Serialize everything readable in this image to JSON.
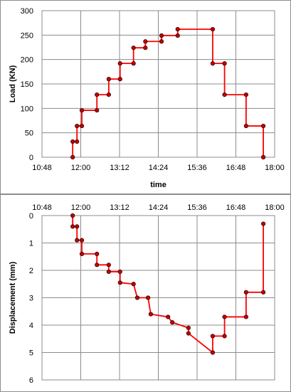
{
  "chart_data": [
    {
      "type": "line",
      "step": true,
      "title": "",
      "xlabel": "time",
      "ylabel": "Load (KN)",
      "xlim": [
        "10:48",
        "18:00"
      ],
      "ylim": [
        0,
        300
      ],
      "x_ticks": [
        "10:48",
        "12:00",
        "13:12",
        "14:24",
        "15:36",
        "16:48",
        "18:00"
      ],
      "y_ticks": [
        "0",
        "50",
        "100",
        "150",
        "200",
        "250",
        "300"
      ],
      "grid": true,
      "line_color": "#ff0000",
      "marker_color": "#c00000",
      "points": [
        {
          "x": "11:45",
          "y": 0
        },
        {
          "x": "11:45",
          "y": 32
        },
        {
          "x": "11:53",
          "y": 32
        },
        {
          "x": "11:53",
          "y": 64
        },
        {
          "x": "12:02",
          "y": 64
        },
        {
          "x": "12:02",
          "y": 96
        },
        {
          "x": "12:30",
          "y": 96
        },
        {
          "x": "12:30",
          "y": 128
        },
        {
          "x": "12:52",
          "y": 128
        },
        {
          "x": "12:52",
          "y": 160
        },
        {
          "x": "13:13",
          "y": 160
        },
        {
          "x": "13:13",
          "y": 192
        },
        {
          "x": "13:38",
          "y": 192
        },
        {
          "x": "13:38",
          "y": 224
        },
        {
          "x": "14:00",
          "y": 224
        },
        {
          "x": "14:00",
          "y": 237
        },
        {
          "x": "14:30",
          "y": 237
        },
        {
          "x": "14:30",
          "y": 249
        },
        {
          "x": "15:00",
          "y": 249
        },
        {
          "x": "15:00",
          "y": 262
        },
        {
          "x": "16:05",
          "y": 262
        },
        {
          "x": "16:05",
          "y": 192
        },
        {
          "x": "16:27",
          "y": 192
        },
        {
          "x": "16:27",
          "y": 128
        },
        {
          "x": "17:07",
          "y": 128
        },
        {
          "x": "17:07",
          "y": 64
        },
        {
          "x": "17:39",
          "y": 64
        },
        {
          "x": "17:39",
          "y": 0
        }
      ]
    },
    {
      "type": "line",
      "title": "",
      "xlabel": "",
      "ylabel": "Displacement  (mm)",
      "xlim": [
        "10:48",
        "18:00"
      ],
      "ylim": [
        0,
        6
      ],
      "y_inverted": true,
      "x_axis_position": "top",
      "x_ticks": [
        "10:48",
        "12:00",
        "13:12",
        "14:24",
        "15:36",
        "16:48",
        "18:00"
      ],
      "y_ticks": [
        "0",
        "1",
        "2",
        "3",
        "4",
        "5",
        "6"
      ],
      "grid": true,
      "line_color": "#ff0000",
      "marker_color": "#c00000",
      "points": [
        {
          "x": "11:45",
          "y": 0.0
        },
        {
          "x": "11:45",
          "y": 0.4
        },
        {
          "x": "11:53",
          "y": 0.4
        },
        {
          "x": "11:53",
          "y": 0.9
        },
        {
          "x": "12:02",
          "y": 0.9
        },
        {
          "x": "12:02",
          "y": 1.4
        },
        {
          "x": "12:30",
          "y": 1.4
        },
        {
          "x": "12:30",
          "y": 1.8
        },
        {
          "x": "12:52",
          "y": 1.8
        },
        {
          "x": "12:52",
          "y": 2.05
        },
        {
          "x": "13:13",
          "y": 2.05
        },
        {
          "x": "13:13",
          "y": 2.45
        },
        {
          "x": "13:38",
          "y": 2.5
        },
        {
          "x": "13:45",
          "y": 3.0
        },
        {
          "x": "14:05",
          "y": 3.0
        },
        {
          "x": "14:10",
          "y": 3.6
        },
        {
          "x": "14:42",
          "y": 3.7
        },
        {
          "x": "14:50",
          "y": 3.9
        },
        {
          "x": "15:20",
          "y": 4.1
        },
        {
          "x": "15:20",
          "y": 4.3
        },
        {
          "x": "16:05",
          "y": 5.0
        },
        {
          "x": "16:05",
          "y": 4.4
        },
        {
          "x": "16:27",
          "y": 4.4
        },
        {
          "x": "16:27",
          "y": 3.7
        },
        {
          "x": "17:07",
          "y": 3.7
        },
        {
          "x": "17:07",
          "y": 2.8
        },
        {
          "x": "17:39",
          "y": 2.8
        },
        {
          "x": "17:39",
          "y": 0.3
        }
      ]
    }
  ]
}
